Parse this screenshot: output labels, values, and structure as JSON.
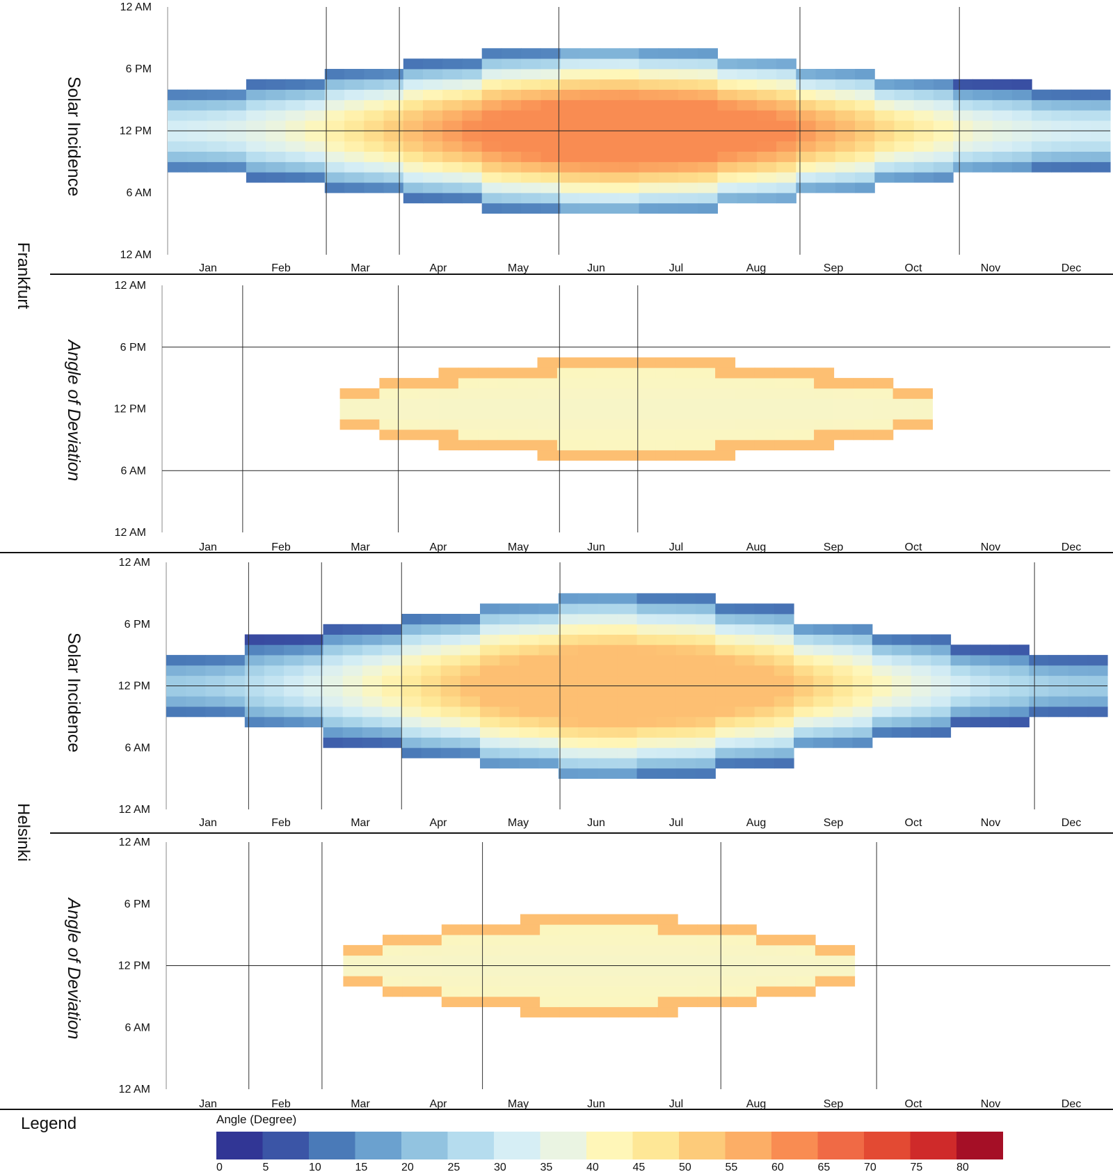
{
  "cities": [
    "Frankfurt",
    "Helsinki"
  ],
  "panel_labels": [
    "Solar Incidence",
    "Angle of Deviation"
  ],
  "time_ticks": [
    "12 AM",
    "6 PM",
    "12 PM",
    "6 AM",
    "12 AM"
  ],
  "months": [
    "Jan",
    "Feb",
    "Mar",
    "Apr",
    "May",
    "Jun",
    "Jul",
    "Aug",
    "Sep",
    "Oct",
    "Nov",
    "Dec"
  ],
  "legend": {
    "title": "Legend",
    "subtitle": "Angle (Degree)",
    "ticks": [
      "0",
      "5",
      "10",
      "15",
      "20",
      "25",
      "30",
      "35",
      "40",
      "45",
      "50",
      "55",
      "60",
      "65",
      "70",
      "75",
      "80"
    ],
    "colors": [
      "#313695",
      "#3b55a6",
      "#4a7ab8",
      "#6ba1cf",
      "#92c3e0",
      "#b5dcee",
      "#d6eef5",
      "#eaf4e2",
      "#fff6b8",
      "#fee796",
      "#fdcb7a",
      "#fcae66",
      "#f98c52",
      "#f06a45",
      "#e34a33",
      "#cf2a2a",
      "#a50f26"
    ]
  },
  "chart_data": [
    {
      "type": "heatmap",
      "city": "Frankfurt",
      "panel": "Solar Incidence",
      "x_axis": "month",
      "y_axis": "time of day",
      "value_unit": "degree",
      "value_range": [
        0,
        80
      ],
      "peak_value": 60,
      "peak_month": "Jun",
      "peak_time": "12 PM",
      "daylight_hours_by_month": {
        "Jan": 8.5,
        "Feb": 10,
        "Mar": 12,
        "Apr": 13.5,
        "May": 15.5,
        "Jun": 16.5,
        "Jul": 16,
        "Aug": 14.5,
        "Sep": 12.5,
        "Oct": 10.5,
        "Nov": 9,
        "Dec": 8
      },
      "marker_month_positions": [
        2.02,
        2.95,
        4.98,
        8.05,
        10.08
      ]
    },
    {
      "type": "heatmap",
      "city": "Frankfurt",
      "panel": "Angle of Deviation",
      "x_axis": "month",
      "y_axis": "time of day",
      "value_unit": "degree",
      "value_range": [
        0,
        80
      ],
      "typical_value": 38,
      "edge_value": 52,
      "span_months": [
        "Mar",
        "Oct"
      ],
      "hour_lines": [
        "6 PM",
        "6 AM"
      ],
      "marker_month_positions": [
        1.02,
        2.99,
        5.03,
        6.02
      ]
    },
    {
      "type": "heatmap",
      "city": "Helsinki",
      "panel": "Solar Incidence",
      "x_axis": "month",
      "y_axis": "time of day",
      "value_unit": "degree",
      "value_range": [
        0,
        80
      ],
      "peak_value": 52,
      "peak_month": "Jun",
      "peak_time": "12 PM",
      "daylight_hours_by_month": {
        "Jan": 6.5,
        "Feb": 9,
        "Mar": 11.5,
        "Apr": 14,
        "May": 16.5,
        "Jun": 18.5,
        "Jul": 17.5,
        "Aug": 15.5,
        "Sep": 12.5,
        "Oct": 10,
        "Nov": 7.5,
        "Dec": 6
      },
      "marker_month_positions": [
        1.05,
        1.98,
        3.0,
        5.02,
        11.07
      ]
    },
    {
      "type": "heatmap",
      "city": "Helsinki",
      "panel": "Angle of Deviation",
      "x_axis": "month",
      "y_axis": "time of day",
      "value_unit": "degree",
      "value_range": [
        0,
        80
      ],
      "typical_value": 38,
      "edge_value": 52,
      "span_months": [
        "Mar",
        "Sep"
      ],
      "hour_lines": [
        "12 PM"
      ],
      "marker_month_positions": [
        1.05,
        1.98,
        4.02,
        7.05,
        9.03
      ]
    }
  ]
}
